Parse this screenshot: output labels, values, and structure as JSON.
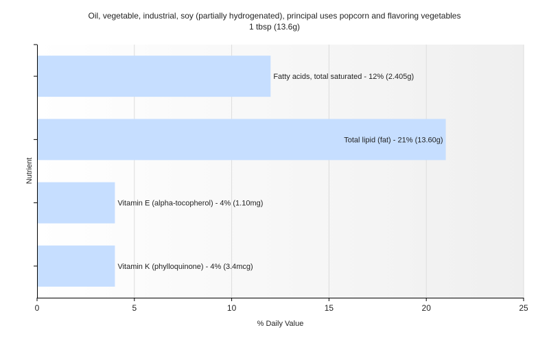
{
  "chart_data": {
    "type": "bar",
    "orientation": "horizontal",
    "title": "Oil, vegetable, industrial, soy (partially hydrogenated), principal uses popcorn and flavoring vegetables",
    "subtitle": "1 tbsp (13.6g)",
    "xlabel": "% Daily Value",
    "ylabel": "Nutrient",
    "xlim": [
      0,
      25
    ],
    "xticks": [
      0,
      5,
      10,
      15,
      20,
      25
    ],
    "grid": true,
    "bar_color": "#c6deff",
    "categories": [
      "Fatty acids, total saturated",
      "Total lipid (fat)",
      "Vitamin E (alpha-tocopherol)",
      "Vitamin K (phylloquinone)"
    ],
    "values": [
      12,
      21,
      4,
      4
    ],
    "data_labels": [
      "Fatty acids, total saturated - 12% (2.405g)",
      "Total lipid (fat) - 21% (13.60g)",
      "Vitamin E (alpha-tocopherol) - 4% (1.10mg)",
      "Vitamin K (phylloquinone) - 4% (3.4mcg)"
    ]
  }
}
